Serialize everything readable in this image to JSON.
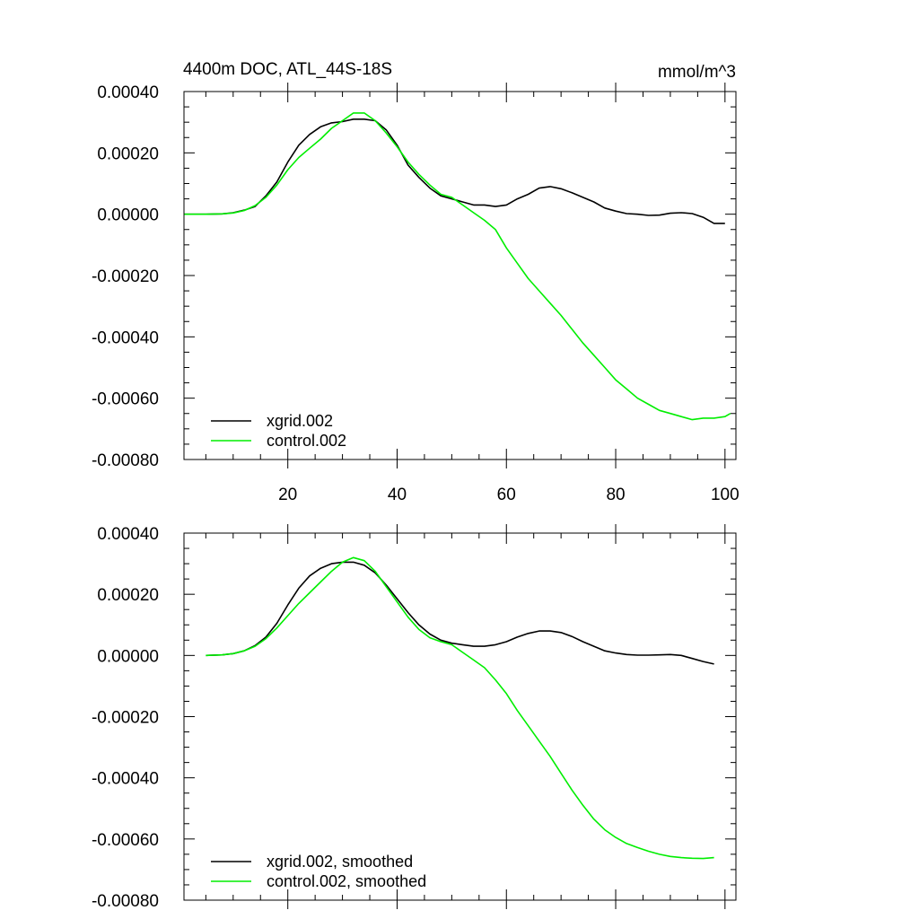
{
  "colors": {
    "xgrid": "#000000",
    "control": "#00ee00",
    "axis": "#000000",
    "background": "#ffffff"
  },
  "chart_data": [
    {
      "type": "line",
      "title": "4400m DOC, ATL_44S-18S",
      "units": "mmol/m^3",
      "xlim": [
        1,
        102
      ],
      "ylim": [
        -0.0008,
        0.0004
      ],
      "xticks": [
        20,
        40,
        60,
        80,
        100
      ],
      "xtick_labels": [
        "20",
        "40",
        "60",
        "80",
        "100"
      ],
      "yticks": [
        0.0004,
        0.0002,
        0.0,
        -0.0002,
        -0.0004,
        -0.0006,
        -0.0008
      ],
      "ytick_labels": [
        "0.00040",
        "0.00020",
        "0.00000",
        "-0.00020",
        "-0.00040",
        "-0.00060",
        "-0.00080"
      ],
      "legend_position": "bottom-left",
      "series": [
        {
          "name": "xgrid.002",
          "color_key": "xgrid",
          "x": [
            1,
            5,
            8,
            10,
            12,
            14,
            16,
            18,
            20,
            22,
            24,
            26,
            28,
            30,
            32,
            34,
            36,
            38,
            40,
            42,
            44,
            46,
            48,
            50,
            52,
            54,
            56,
            58,
            60,
            62,
            64,
            66,
            68,
            70,
            72,
            74,
            76,
            78,
            80,
            82,
            84,
            86,
            88,
            90,
            92,
            94,
            96,
            98,
            100
          ],
          "y": [
            0,
            0,
            1e-06,
            5e-06,
            1.3e-05,
            2.5e-05,
            6e-05,
            0.000105,
            0.00017,
            0.000225,
            0.00026,
            0.000285,
            0.000298,
            0.000302,
            0.00031,
            0.00031,
            0.000305,
            0.000275,
            0.000225,
            0.00016,
            0.00012,
            8.5e-05,
            6e-05,
            5e-05,
            4e-05,
            3e-05,
            3e-05,
            2.5e-05,
            3e-05,
            5e-05,
            6.5e-05,
            8.5e-05,
            9e-05,
            8.3e-05,
            7e-05,
            5.5e-05,
            4e-05,
            2e-05,
            1e-05,
            2e-06,
            0.0,
            -4e-06,
            -3e-06,
            3e-06,
            5e-06,
            2e-06,
            -1e-05,
            -3e-05,
            -3e-05
          ]
        },
        {
          "name": "control.002",
          "color_key": "control",
          "x": [
            1,
            5,
            8,
            10,
            12,
            14,
            16,
            18,
            20,
            22,
            24,
            26,
            28,
            30,
            32,
            34,
            36,
            38,
            40,
            42,
            44,
            46,
            48,
            50,
            52,
            54,
            56,
            58,
            60,
            62,
            64,
            66,
            68,
            70,
            72,
            74,
            76,
            78,
            80,
            82,
            84,
            86,
            88,
            90,
            92,
            94,
            96,
            98,
            100,
            101
          ],
          "y": [
            0,
            0,
            1e-06,
            4e-06,
            1.2e-05,
            2.8e-05,
            5.5e-05,
            9.5e-05,
            0.000145,
            0.000185,
            0.000215,
            0.000245,
            0.00028,
            0.000305,
            0.00033,
            0.00033,
            0.000305,
            0.000265,
            0.00022,
            0.00017,
            0.00013,
            9.5e-05,
            6.5e-05,
            5.5e-05,
            3e-05,
            5e-06,
            -2e-05,
            -5e-05,
            -0.00011,
            -0.00016,
            -0.00021,
            -0.00025,
            -0.00029,
            -0.00033,
            -0.000375,
            -0.00042,
            -0.00046,
            -0.0005,
            -0.00054,
            -0.00057,
            -0.0006,
            -0.00062,
            -0.00064,
            -0.00065,
            -0.00066,
            -0.00067,
            -0.000665,
            -0.000665,
            -0.00066,
            -0.00065
          ]
        }
      ]
    },
    {
      "type": "line",
      "title": "",
      "units": "",
      "xlim": [
        1,
        102
      ],
      "ylim": [
        -0.0008,
        0.0004
      ],
      "xticks": [
        20,
        40,
        60,
        80,
        100
      ],
      "xtick_labels": [],
      "yticks": [
        0.0004,
        0.0002,
        0.0,
        -0.0002,
        -0.0004,
        -0.0006,
        -0.0008
      ],
      "ytick_labels": [
        "0.00040",
        "0.00020",
        "0.00000",
        "-0.00020",
        "-0.00040",
        "-0.00060",
        "-0.00080"
      ],
      "legend_position": "bottom-left",
      "series": [
        {
          "name": "xgrid.002, smoothed",
          "color_key": "xgrid",
          "x": [
            5,
            8,
            10,
            12,
            14,
            16,
            18,
            20,
            22,
            24,
            26,
            28,
            30,
            32,
            34,
            36,
            38,
            40,
            42,
            44,
            46,
            48,
            50,
            52,
            54,
            56,
            58,
            60,
            62,
            64,
            66,
            68,
            70,
            72,
            74,
            76,
            78,
            80,
            82,
            84,
            86,
            88,
            90,
            92,
            94,
            96,
            98
          ],
          "y": [
            0,
            2e-06,
            6e-06,
            1.5e-05,
            3.2e-05,
            6e-05,
            0.000105,
            0.000165,
            0.00022,
            0.00026,
            0.000285,
            0.0003,
            0.000305,
            0.000305,
            0.000295,
            0.00027,
            0.00023,
            0.000185,
            0.00014,
            0.0001,
            7e-05,
            5e-05,
            4e-05,
            3.5e-05,
            3e-05,
            3e-05,
            3.5e-05,
            4.5e-05,
            6e-05,
            7.2e-05,
            8e-05,
            8e-05,
            7.5e-05,
            6.2e-05,
            4.5e-05,
            3e-05,
            1.5e-05,
            8e-06,
            3e-06,
            1e-06,
            1e-06,
            2e-06,
            3e-06,
            0.0,
            -1e-05,
            -2e-05,
            -2.8e-05
          ]
        },
        {
          "name": "control.002, smoothed",
          "color_key": "control",
          "x": [
            5,
            8,
            10,
            12,
            14,
            16,
            18,
            20,
            22,
            24,
            26,
            28,
            30,
            32,
            34,
            36,
            38,
            40,
            42,
            44,
            46,
            48,
            50,
            52,
            54,
            56,
            58,
            60,
            62,
            64,
            66,
            68,
            70,
            72,
            74,
            76,
            78,
            80,
            82,
            84,
            86,
            88,
            90,
            92,
            94,
            96,
            98
          ],
          "y": [
            0,
            2e-06,
            6e-06,
            1.5e-05,
            3e-05,
            5.5e-05,
            9e-05,
            0.00013,
            0.00017,
            0.000205,
            0.00024,
            0.000275,
            0.000305,
            0.00032,
            0.00031,
            0.000275,
            0.000225,
            0.000175,
            0.000125,
            8.5e-05,
            5.8e-05,
            4.5e-05,
            3.5e-05,
            1e-05,
            -1.5e-05,
            -4e-05,
            -8e-05,
            -0.000125,
            -0.00018,
            -0.00023,
            -0.00028,
            -0.00033,
            -0.000385,
            -0.00044,
            -0.00049,
            -0.000535,
            -0.00057,
            -0.000595,
            -0.000615,
            -0.000628,
            -0.00064,
            -0.00065,
            -0.000657,
            -0.000661,
            -0.000663,
            -0.000664,
            -0.000661
          ]
        }
      ]
    }
  ]
}
